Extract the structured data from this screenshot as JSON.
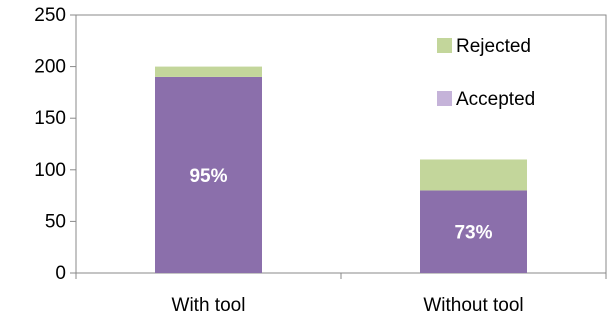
{
  "chart_data": {
    "type": "bar",
    "stacked": true,
    "categories": [
      "With tool",
      "Without tool"
    ],
    "series": [
      {
        "name": "Accepted",
        "values": [
          190,
          80
        ],
        "color": "#8b6fab"
      },
      {
        "name": "Rejected",
        "values": [
          10,
          30
        ],
        "color": "#c3d69b"
      }
    ],
    "data_labels": [
      "95%",
      "73%"
    ],
    "ylim": [
      0,
      250
    ],
    "yticks": [
      0,
      50,
      100,
      150,
      200,
      250
    ],
    "legend_position": "top-right",
    "legend_order": [
      "Rejected",
      "Accepted"
    ],
    "grid": false,
    "title": "",
    "xlabel": "",
    "ylabel": ""
  }
}
